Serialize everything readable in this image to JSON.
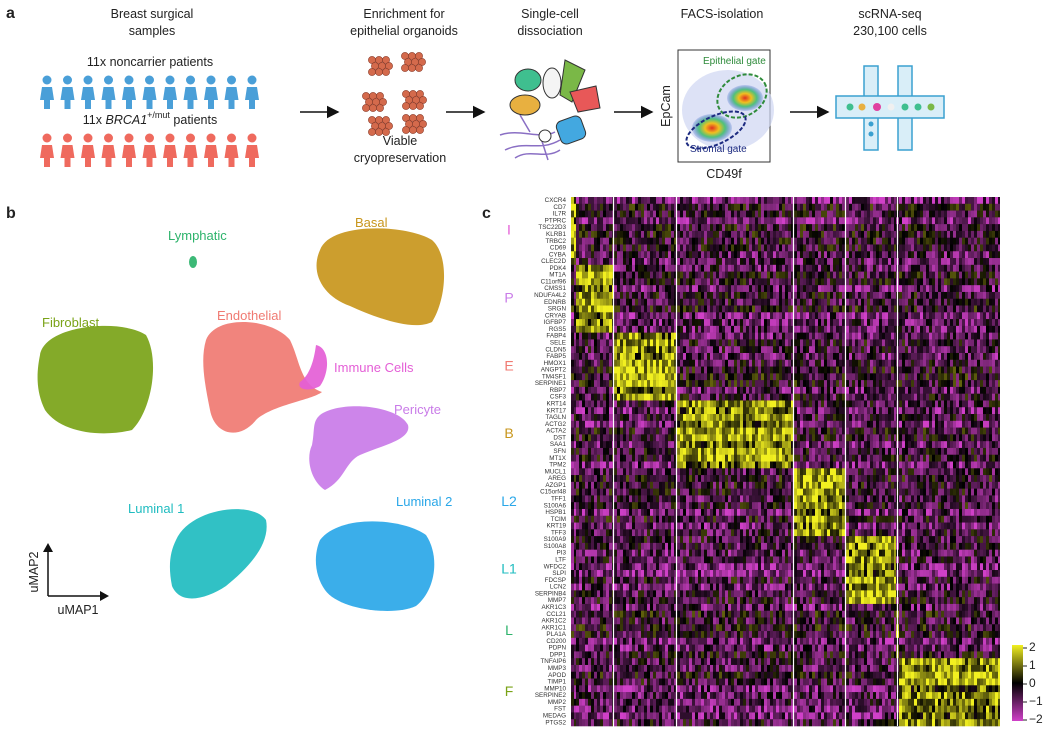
{
  "panel_a": {
    "label": "a",
    "samples": {
      "title": [
        "Breast surgical",
        "samples"
      ],
      "noncarrier": "11x noncarrier patients",
      "brca_prefix": "11x ",
      "brca_gene": "BRCA1",
      "brca_sup": "+/mut",
      "brca_suffix": " patients"
    },
    "enrichment": {
      "title": [
        "Enrichment for",
        "epithelial organoids"
      ],
      "caption": [
        "Viable",
        "cryopreservation"
      ]
    },
    "dissociation": {
      "title": [
        "Single-cell",
        "dissociation"
      ]
    },
    "facs": {
      "title": "FACS-isolation",
      "y_label": "EpCam",
      "x_label": "CD49f",
      "epithelial_gate": "Epithelial gate",
      "stromal_gate": "Stromal gate"
    },
    "sequencing": {
      "title": [
        "scRNA-seq",
        "230,100 cells"
      ]
    }
  },
  "panel_b": {
    "label": "b",
    "x_label": "uMAP1",
    "y_label": "uMAP2",
    "clusters": [
      {
        "name": "Lymphatic",
        "color": "#2db36b"
      },
      {
        "name": "Basal",
        "color": "#c8961c"
      },
      {
        "name": "Fibroblast",
        "color": "#7aa317"
      },
      {
        "name": "Endothelial",
        "color": "#f07a72"
      },
      {
        "name": "Immune Cells",
        "color": "#e45ed6"
      },
      {
        "name": "Pericyte",
        "color": "#c97be8"
      },
      {
        "name": "Luminal 1",
        "color": "#1fbcc0"
      },
      {
        "name": "Luminal 2",
        "color": "#2aa7e8"
      }
    ]
  },
  "panel_c": {
    "label": "c",
    "groups": [
      {
        "name": "I",
        "color": "#e45ed6",
        "genes": [
          "CXCR4",
          "CD7",
          "IL7R",
          "PTPRC",
          "TSC22D3",
          "KLRB1",
          "TRBC2",
          "CD69",
          "CYBA",
          "CLEC2D"
        ]
      },
      {
        "name": "P",
        "color": "#c97be8",
        "genes": [
          "PDK4",
          "MT1A",
          "C11orf96",
          "CMSS1",
          "NDUFA4L2",
          "EDNRB",
          "SRGN",
          "CRYAB",
          "IGFBP7",
          "RGS5"
        ]
      },
      {
        "name": "E",
        "color": "#f07a72",
        "genes": [
          "FABP4",
          "SELE",
          "CLDN5",
          "FABP5",
          "HMOX1",
          "ANGPT2",
          "TM4SF1",
          "SERPINE1",
          "RBP7",
          "CSF3"
        ]
      },
      {
        "name": "B",
        "color": "#c8961c",
        "genes": [
          "KRT14",
          "KRT17",
          "TAGLN",
          "ACTG2",
          "ACTA2",
          "DST",
          "SAA1",
          "SFN",
          "MT1X",
          "TPM2"
        ]
      },
      {
        "name": "L2",
        "color": "#2aa7e8",
        "genes": [
          "MUCL1",
          "AREG",
          "AZGP1",
          "C15orf48",
          "TFF1",
          "S100A6",
          "HSPB1",
          "TCIM",
          "KRT19",
          "TFF3"
        ]
      },
      {
        "name": "L1",
        "color": "#1fbcc0",
        "genes": [
          "S100A9",
          "S100A8",
          "PI3",
          "LTF",
          "WFDC2",
          "SLPI",
          "FDCSP",
          "LCN2",
          "SERPINB4",
          "MMP7"
        ]
      },
      {
        "name": "L",
        "color": "#2db36b",
        "genes": [
          "AKR1C3",
          "CCL21",
          "AKR1C2",
          "AKR1C1",
          "PLA1A",
          "CD200",
          "PDPN",
          "DPP1"
        ]
      },
      {
        "name": "F",
        "color": "#7aa317",
        "genes": [
          "TNFAIP6",
          "MMP3",
          "APOD",
          "TIMP1",
          "MMP10",
          "SERPINE2",
          "MMP2",
          "FST",
          "MEDAG",
          "PTGS2"
        ]
      }
    ],
    "colorbar": {
      "ticks": [
        "2",
        "1",
        "0",
        "−1",
        "−2"
      ]
    }
  }
}
